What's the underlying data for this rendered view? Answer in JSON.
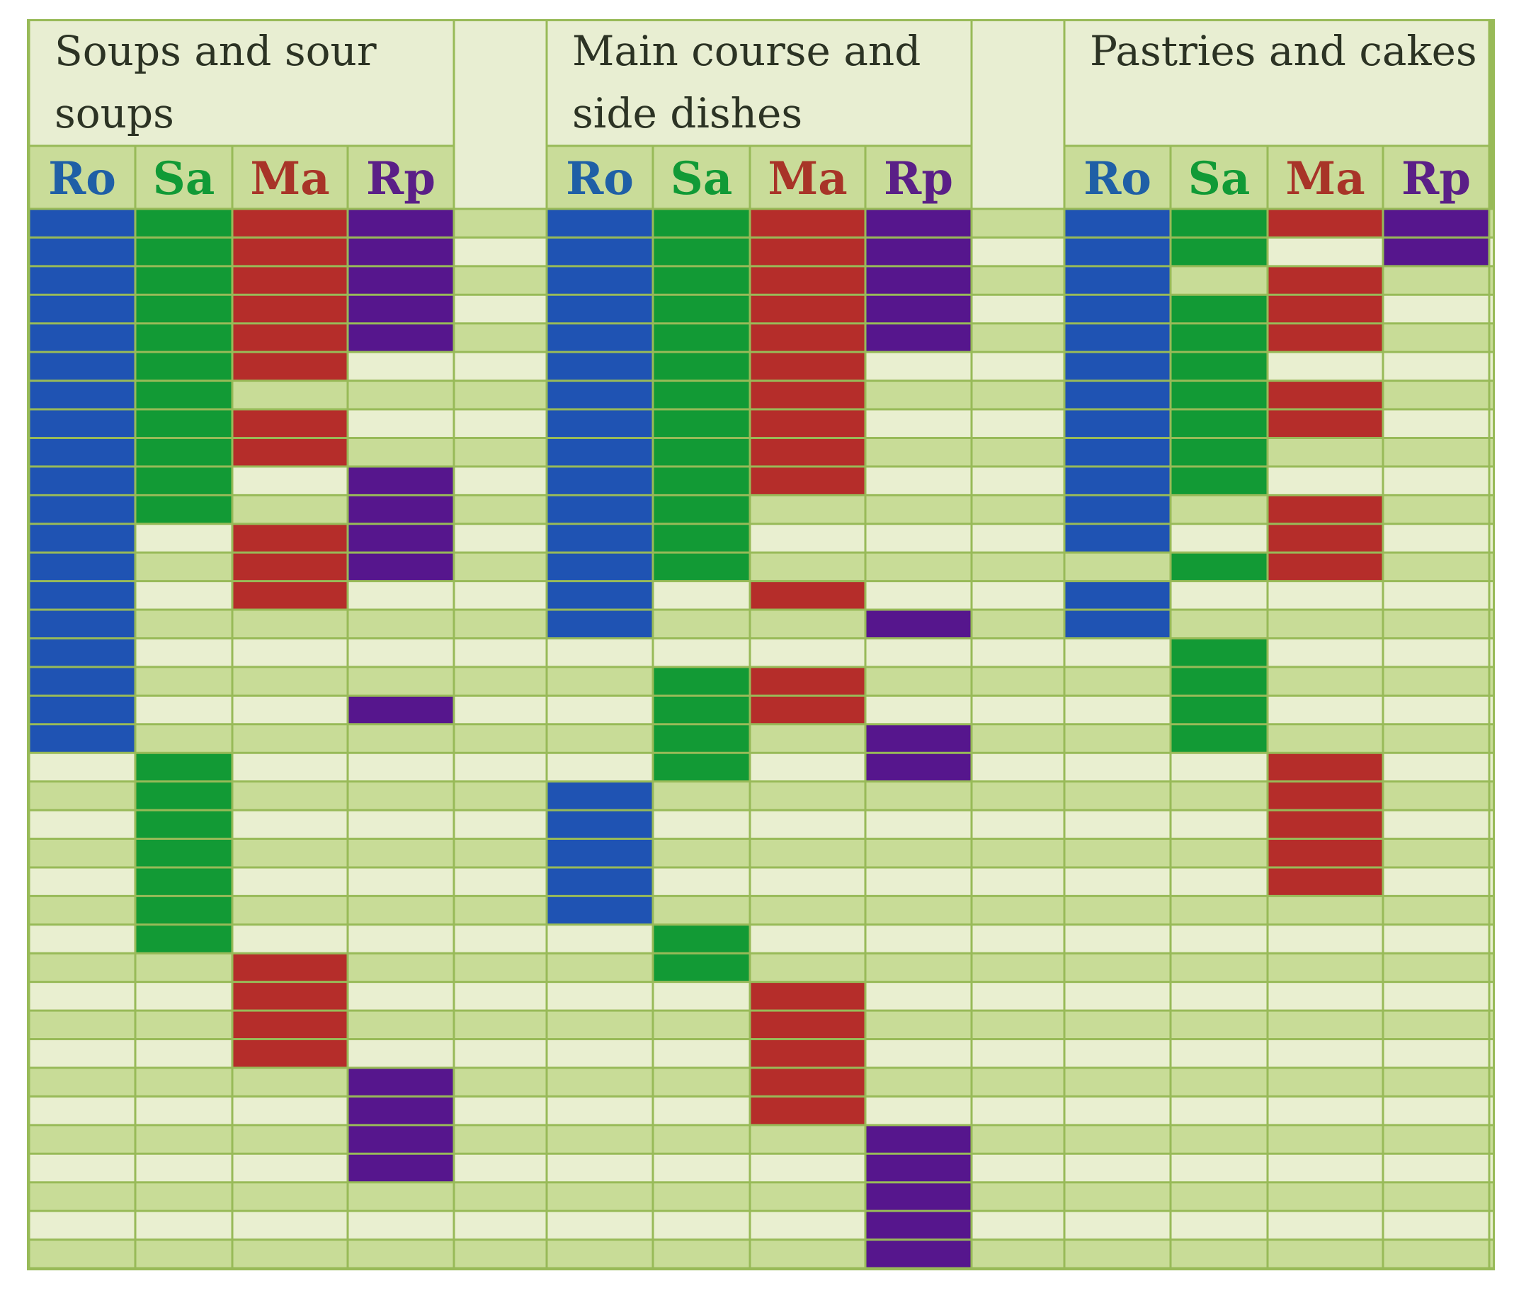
{
  "chart_data": {
    "type": "heatmap",
    "title": "",
    "row_count": 37,
    "colors": {
      "Ro": "#1f53b3",
      "Sa": "#129a35",
      "Ma": "#b52d2a",
      "Rp": "#56168d",
      "header_bg": "#e8eed2",
      "subheader_bg": "#c9dc99",
      "row_dark": "#c8dc97",
      "row_light": "#e9efd0",
      "grid": "#98ba58",
      "label_Ro": "#1f5fa6",
      "label_Sa": "#119a36",
      "label_Ma": "#a83428",
      "label_Rp": "#5a1f87",
      "title_text": "#2c3324"
    },
    "groups": [
      {
        "title": "Soups and sour soups",
        "title_lines": [
          "Soups and sour",
          "soups"
        ],
        "columns": [
          {
            "key": "Ro",
            "label": "Ro",
            "filled_rows": [
              1,
              2,
              3,
              4,
              5,
              6,
              7,
              8,
              9,
              10,
              11,
              12,
              13,
              14,
              15,
              16,
              17,
              18,
              19
            ]
          },
          {
            "key": "Sa",
            "label": "Sa",
            "filled_rows": [
              1,
              2,
              3,
              4,
              5,
              6,
              7,
              8,
              9,
              10,
              11,
              20,
              21,
              22,
              23,
              24,
              25,
              26
            ]
          },
          {
            "key": "Ma",
            "label": "Ma",
            "filled_rows": [
              1,
              2,
              3,
              4,
              5,
              6,
              8,
              9,
              12,
              13,
              14,
              27,
              28,
              29,
              30
            ]
          },
          {
            "key": "Rp",
            "label": "Rp",
            "filled_rows": [
              1,
              2,
              3,
              4,
              5,
              10,
              11,
              12,
              13,
              18,
              31,
              32,
              33,
              34
            ]
          }
        ]
      },
      {
        "title": "Main course and side dishes",
        "title_lines": [
          "Main course and",
          "side dishes"
        ],
        "columns": [
          {
            "key": "Ro",
            "label": "Ro",
            "filled_rows": [
              1,
              2,
              3,
              4,
              5,
              6,
              7,
              8,
              9,
              10,
              11,
              12,
              13,
              14,
              15,
              21,
              22,
              23,
              24,
              25
            ]
          },
          {
            "key": "Sa",
            "label": "Sa",
            "filled_rows": [
              1,
              2,
              3,
              4,
              5,
              6,
              7,
              8,
              9,
              10,
              11,
              12,
              13,
              17,
              18,
              19,
              20,
              26,
              27
            ]
          },
          {
            "key": "Ma",
            "label": "Ma",
            "filled_rows": [
              1,
              2,
              3,
              4,
              5,
              6,
              7,
              8,
              9,
              10,
              14,
              17,
              18,
              28,
              29,
              30,
              31,
              32
            ]
          },
          {
            "key": "Rp",
            "label": "Rp",
            "filled_rows": [
              1,
              2,
              3,
              4,
              5,
              15,
              19,
              20,
              33,
              34,
              35,
              36,
              37
            ]
          }
        ]
      },
      {
        "title": "Pastries and cakes",
        "title_lines": [
          "Pastries and cakes"
        ],
        "columns": [
          {
            "key": "Ro",
            "label": "Ro",
            "filled_rows": [
              1,
              2,
              3,
              4,
              5,
              6,
              7,
              8,
              9,
              10,
              11,
              12,
              14,
              15
            ]
          },
          {
            "key": "Sa",
            "label": "Sa",
            "filled_rows": [
              1,
              2,
              4,
              5,
              6,
              7,
              8,
              9,
              10,
              13,
              16,
              17,
              18,
              19
            ]
          },
          {
            "key": "Ma",
            "label": "Ma",
            "filled_rows": [
              1,
              3,
              4,
              5,
              7,
              8,
              11,
              12,
              13,
              20,
              21,
              22,
              23,
              24
            ]
          },
          {
            "key": "Rp",
            "label": "Rp",
            "filled_rows": [
              1,
              2
            ]
          }
        ]
      }
    ]
  }
}
